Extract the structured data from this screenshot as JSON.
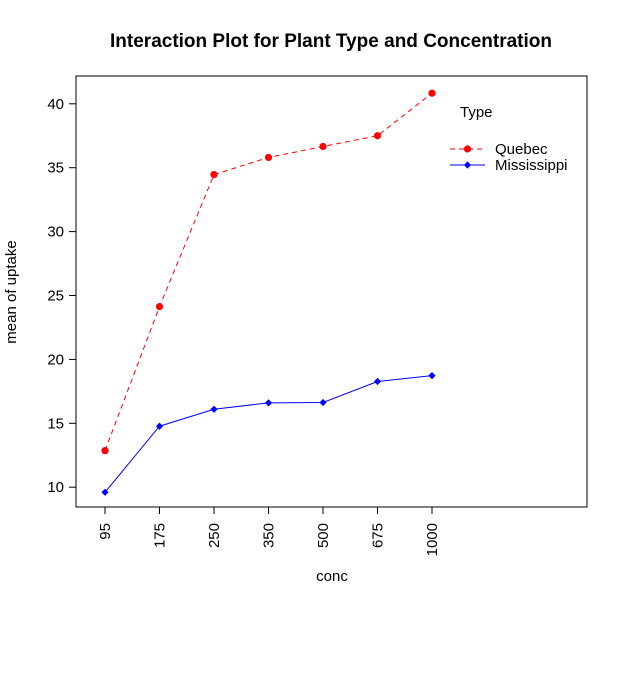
{
  "chart_data": {
    "type": "line",
    "title": "Interaction Plot for Plant Type and Concentration",
    "xlabel": "conc",
    "ylabel": "mean of  uptake",
    "categories": [
      "95",
      "175",
      "250",
      "350",
      "500",
      "675",
      "1000"
    ],
    "ylim": [
      10,
      40
    ],
    "yticks": [
      10,
      15,
      20,
      25,
      30,
      35,
      40
    ],
    "grid": false,
    "legend": {
      "title": "Type",
      "placement": "top-right"
    },
    "series": [
      {
        "name": "Quebec",
        "values": [
          12.86,
          24.13,
          34.46,
          35.8,
          36.66,
          37.5,
          40.83
        ],
        "color": "#ff0000",
        "line_style": "dashed",
        "marker": "circle"
      },
      {
        "name": "Mississippi",
        "values": [
          9.6,
          14.77,
          16.1,
          16.6,
          16.63,
          18.27,
          18.73
        ],
        "color": "#0000ff",
        "line_style": "solid",
        "marker": "diamond"
      }
    ]
  }
}
